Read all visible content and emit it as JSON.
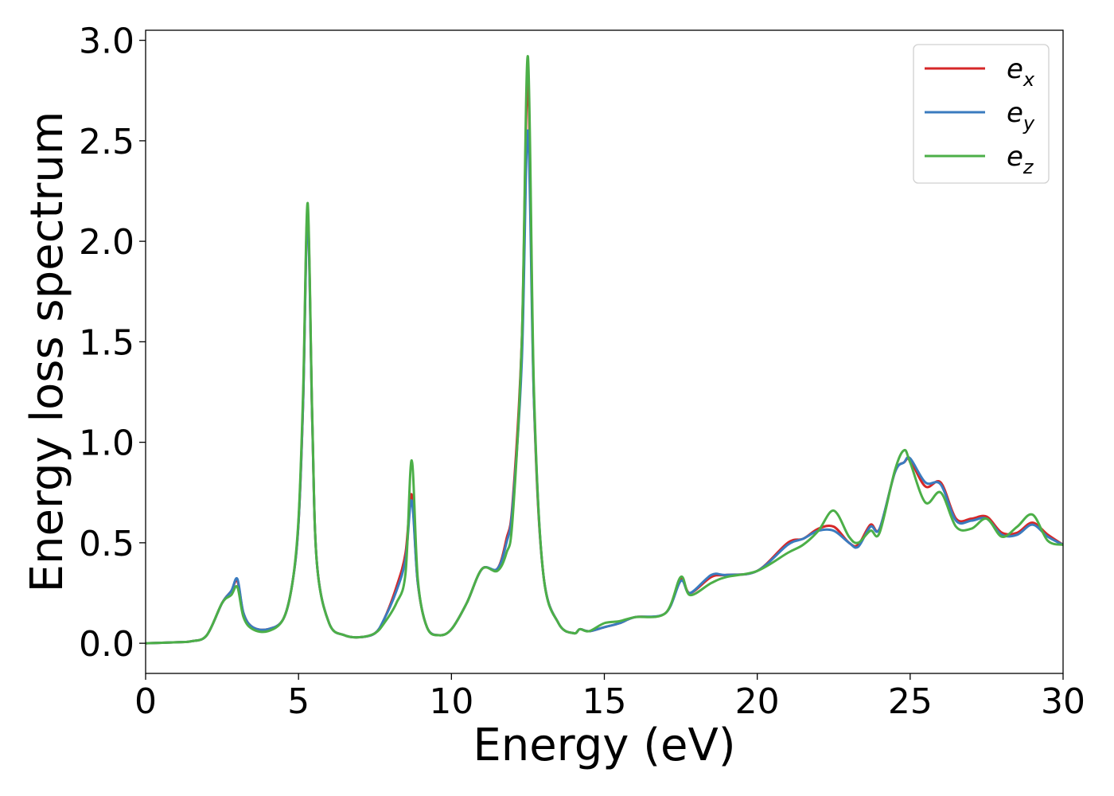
{
  "chart_data": {
    "type": "line",
    "xlabel": "Energy (eV)",
    "ylabel": "Energy loss spectrum",
    "xlim": [
      0,
      30
    ],
    "ylim": [
      -0.15,
      3.05
    ],
    "xticks": [
      "0",
      "5",
      "10",
      "15",
      "20",
      "25",
      "30"
    ],
    "yticks": [
      "0.0",
      "0.5",
      "1.0",
      "1.5",
      "2.0",
      "2.5",
      "3.0"
    ],
    "grid": false,
    "legend_position": "top-right",
    "series": [
      {
        "name": "e_x",
        "legend_main": "e",
        "legend_sub": "x",
        "color": "#d62728",
        "x": [
          0,
          1,
          1.5,
          2,
          2.5,
          2.8,
          3.0,
          3.2,
          3.5,
          4.0,
          4.5,
          4.8,
          5.0,
          5.15,
          5.3,
          5.45,
          5.6,
          6.0,
          6.5,
          7.0,
          7.5,
          7.8,
          8.2,
          8.5,
          8.7,
          8.9,
          9.2,
          9.6,
          10.0,
          10.5,
          11.0,
          11.5,
          11.8,
          12.0,
          12.3,
          12.5,
          12.7,
          13.0,
          13.5,
          14.0,
          14.2,
          14.5,
          15.0,
          15.5,
          16.0,
          17.0,
          17.5,
          17.8,
          18.5,
          19.0,
          20.0,
          21.0,
          21.5,
          22.0,
          22.5,
          23.0,
          23.3,
          23.7,
          24.0,
          24.5,
          24.8,
          25.0,
          25.5,
          26.0,
          26.5,
          27.0,
          27.5,
          28.0,
          28.5,
          29.0,
          29.5,
          30.0
        ],
        "y": [
          0.0,
          0.005,
          0.01,
          0.04,
          0.2,
          0.26,
          0.31,
          0.15,
          0.08,
          0.07,
          0.12,
          0.3,
          0.6,
          1.2,
          2.15,
          1.1,
          0.4,
          0.1,
          0.04,
          0.03,
          0.05,
          0.12,
          0.28,
          0.45,
          0.74,
          0.3,
          0.08,
          0.04,
          0.07,
          0.2,
          0.37,
          0.37,
          0.52,
          0.7,
          1.5,
          2.8,
          1.2,
          0.35,
          0.1,
          0.05,
          0.07,
          0.06,
          0.08,
          0.1,
          0.13,
          0.15,
          0.32,
          0.25,
          0.33,
          0.34,
          0.36,
          0.5,
          0.52,
          0.57,
          0.58,
          0.5,
          0.49,
          0.59,
          0.57,
          0.85,
          0.9,
          0.91,
          0.78,
          0.8,
          0.62,
          0.62,
          0.63,
          0.55,
          0.55,
          0.6,
          0.54,
          0.49
        ]
      },
      {
        "name": "e_y",
        "legend_main": "e",
        "legend_sub": "y",
        "color": "#3a7bbf",
        "x": [
          0,
          1,
          1.5,
          2,
          2.5,
          2.8,
          3.0,
          3.2,
          3.5,
          4.0,
          4.5,
          4.8,
          5.0,
          5.15,
          5.3,
          5.45,
          5.6,
          6.0,
          6.5,
          7.0,
          7.5,
          7.8,
          8.2,
          8.5,
          8.7,
          8.9,
          9.2,
          9.6,
          10.0,
          10.5,
          11.0,
          11.5,
          11.8,
          12.0,
          12.3,
          12.5,
          12.7,
          13.0,
          13.5,
          14.0,
          14.2,
          14.5,
          15.0,
          15.5,
          16.0,
          17.0,
          17.5,
          17.8,
          18.5,
          19.0,
          20.0,
          21.0,
          21.5,
          22.0,
          22.5,
          23.0,
          23.3,
          23.7,
          24.0,
          24.5,
          24.8,
          25.0,
          25.5,
          26.0,
          26.5,
          27.0,
          27.5,
          28.0,
          28.5,
          29.0,
          29.5,
          30.0
        ],
        "y": [
          0.0,
          0.005,
          0.01,
          0.04,
          0.2,
          0.26,
          0.32,
          0.15,
          0.08,
          0.07,
          0.12,
          0.3,
          0.6,
          1.2,
          2.12,
          1.1,
          0.4,
          0.1,
          0.04,
          0.03,
          0.05,
          0.12,
          0.26,
          0.42,
          0.71,
          0.3,
          0.08,
          0.04,
          0.07,
          0.2,
          0.37,
          0.37,
          0.5,
          0.68,
          1.4,
          2.55,
          1.2,
          0.35,
          0.1,
          0.05,
          0.07,
          0.06,
          0.08,
          0.1,
          0.13,
          0.15,
          0.31,
          0.25,
          0.34,
          0.34,
          0.36,
          0.49,
          0.52,
          0.56,
          0.56,
          0.5,
          0.48,
          0.58,
          0.57,
          0.85,
          0.9,
          0.92,
          0.8,
          0.79,
          0.61,
          0.61,
          0.62,
          0.54,
          0.54,
          0.59,
          0.53,
          0.49
        ]
      },
      {
        "name": "e_z",
        "legend_main": "e",
        "legend_sub": "z",
        "color": "#4caf48",
        "x": [
          0,
          1,
          1.5,
          2,
          2.5,
          2.8,
          3.0,
          3.2,
          3.5,
          4.0,
          4.5,
          4.8,
          5.0,
          5.15,
          5.3,
          5.45,
          5.6,
          6.0,
          6.5,
          7.0,
          7.5,
          7.8,
          8.2,
          8.5,
          8.7,
          8.9,
          9.2,
          9.6,
          10.0,
          10.5,
          11.0,
          11.5,
          11.8,
          12.0,
          12.3,
          12.5,
          12.7,
          13.0,
          13.5,
          14.0,
          14.2,
          14.5,
          15.0,
          15.5,
          16.0,
          17.0,
          17.5,
          17.8,
          18.5,
          19.0,
          20.0,
          21.0,
          21.5,
          22.0,
          22.5,
          23.0,
          23.3,
          23.7,
          24.0,
          24.5,
          24.8,
          25.0,
          25.5,
          26.0,
          26.5,
          27.0,
          27.5,
          28.0,
          28.5,
          29.0,
          29.5,
          30.0
        ],
        "y": [
          0.0,
          0.005,
          0.01,
          0.04,
          0.2,
          0.24,
          0.28,
          0.13,
          0.07,
          0.06,
          0.12,
          0.3,
          0.62,
          1.25,
          2.19,
          1.12,
          0.4,
          0.1,
          0.04,
          0.03,
          0.05,
          0.1,
          0.2,
          0.35,
          0.91,
          0.32,
          0.08,
          0.04,
          0.07,
          0.2,
          0.37,
          0.36,
          0.45,
          0.62,
          1.5,
          2.92,
          1.25,
          0.35,
          0.1,
          0.05,
          0.07,
          0.06,
          0.1,
          0.11,
          0.13,
          0.15,
          0.33,
          0.24,
          0.3,
          0.33,
          0.36,
          0.45,
          0.49,
          0.56,
          0.66,
          0.53,
          0.5,
          0.56,
          0.55,
          0.86,
          0.96,
          0.9,
          0.7,
          0.75,
          0.58,
          0.57,
          0.62,
          0.53,
          0.58,
          0.64,
          0.51,
          0.49
        ]
      }
    ]
  }
}
